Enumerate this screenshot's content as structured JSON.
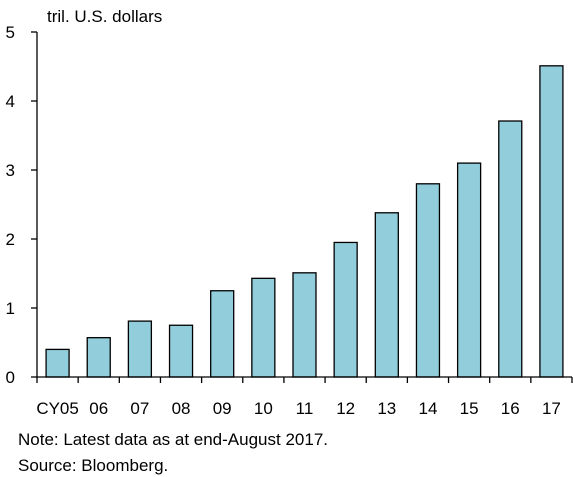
{
  "chart_data": {
    "type": "bar",
    "categories": [
      "CY05",
      "06",
      "07",
      "08",
      "09",
      "10",
      "11",
      "12",
      "13",
      "14",
      "15",
      "16",
      "17"
    ],
    "values": [
      0.4,
      0.57,
      0.81,
      0.75,
      1.25,
      1.43,
      1.51,
      1.95,
      2.38,
      2.8,
      3.1,
      3.71,
      4.51
    ],
    "ylabel": "tril. U.S. dollars",
    "xlabel": "",
    "ylim": [
      0,
      5
    ],
    "yticks": [
      0,
      1,
      2,
      3,
      4,
      5
    ],
    "grid": false,
    "bar_color": "#92CDDC",
    "bar_edge_color": "#000000"
  },
  "notes": {
    "note": "Note: Latest data as at end-August 2017.",
    "source": "Source: Bloomberg."
  }
}
